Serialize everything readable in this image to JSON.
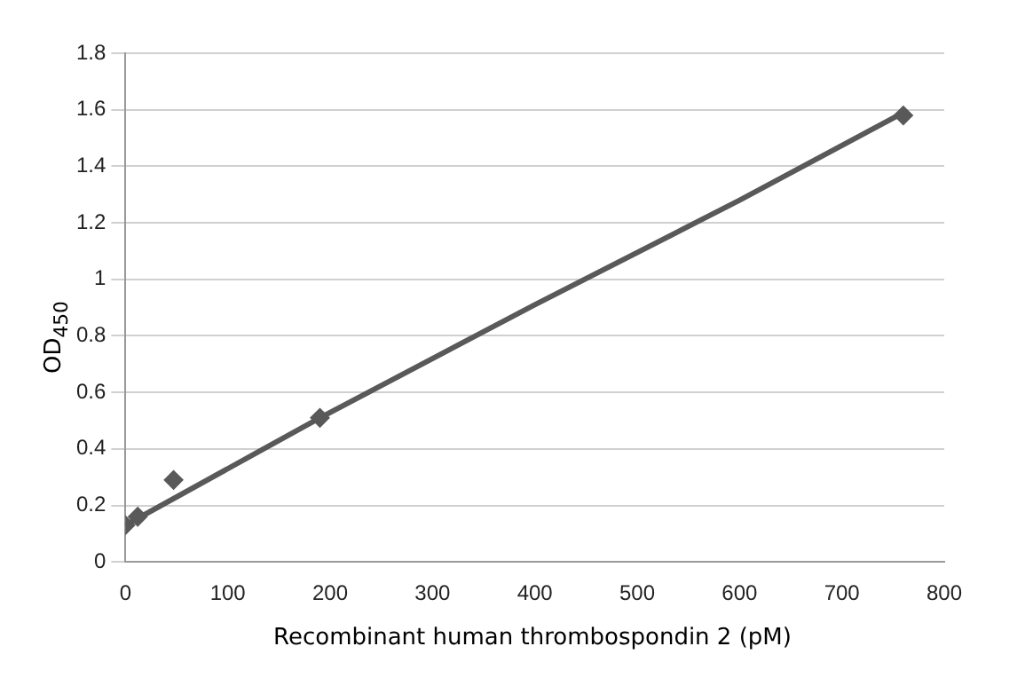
{
  "chart_data": {
    "type": "scatter",
    "xlabel": "Recombinant human thrombospondin 2 (pM)",
    "ylabel": "OD$_{450}$",
    "xlim": [
      0,
      800
    ],
    "xticks": [
      0,
      100,
      200,
      300,
      400,
      500,
      600,
      700,
      800
    ],
    "ylim": [
      0,
      1.8
    ],
    "yticks": [
      0,
      0.2,
      0.4,
      0.6,
      0.8,
      1,
      1.2,
      1.4,
      1.6,
      1.8
    ],
    "grid": "y",
    "legend": false,
    "marker": "diamond",
    "series": [
      {
        "color": "#595959",
        "x": [
          0,
          12,
          47,
          190,
          760
        ],
        "values": [
          0.13,
          0.16,
          0.29,
          0.51,
          1.58
        ]
      },
      {
        "type": "line",
        "color": "#595959",
        "marker": "none",
        "line_style": "solid",
        "x": [
          0,
          190,
          400,
          600,
          760
        ],
        "values": [
          0.13,
          0.51,
          0.91,
          1.28,
          1.59
        ]
      }
    ]
  }
}
